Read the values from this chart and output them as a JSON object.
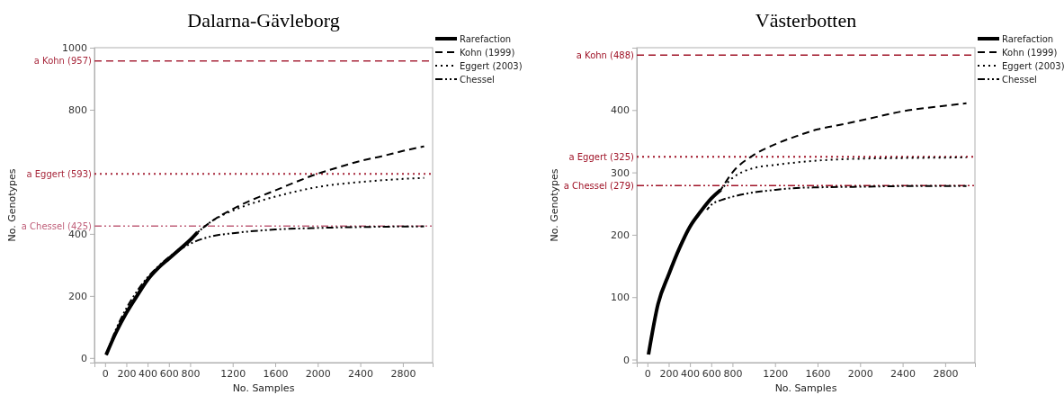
{
  "chart_data": [
    {
      "type": "line",
      "title": "Dalarna-Gävleborg",
      "xlabel": "No. Samples",
      "ylabel": "No. Genotypes",
      "xlim": [
        -100,
        3080
      ],
      "ylim": [
        -15,
        1000
      ],
      "xticks": [
        0,
        200,
        400,
        600,
        800,
        1200,
        1600,
        2000,
        2400,
        2800
      ],
      "yticks": [
        0,
        200,
        400,
        800,
        1000
      ],
      "legend": "top right",
      "grid": false,
      "series": [
        {
          "name": "Rarefaction",
          "color": "#000000",
          "line_style": "solid",
          "x": [
            10,
            100,
            200,
            300,
            400,
            500,
            600,
            700,
            800,
            870
          ],
          "values": [
            10,
            80,
            145,
            200,
            252,
            290,
            320,
            350,
            380,
            405
          ]
        },
        {
          "name": "Kohn (1999)",
          "color": "#000000",
          "line_style": "dashed",
          "x": [
            870,
            1000,
            1200,
            1400,
            1600,
            1800,
            2000,
            2200,
            2400,
            2600,
            2800,
            3000
          ],
          "values": [
            405,
            440,
            480,
            512,
            540,
            568,
            594,
            615,
            635,
            650,
            667,
            682
          ]
        },
        {
          "name": "Eggert (2003)",
          "color": "#000000",
          "line_style": "dotted",
          "x": [
            870,
            1000,
            1200,
            1400,
            1600,
            1800,
            2000,
            2400,
            2800,
            3000
          ],
          "values": [
            405,
            440,
            475,
            500,
            520,
            537,
            551,
            567,
            577,
            580
          ]
        },
        {
          "name": "Chessel",
          "color": "#000000",
          "line_style": "dashdot",
          "x": [
            10,
            100,
            200,
            300,
            400,
            500,
            600,
            700,
            800,
            1000,
            1200,
            1400,
            1600,
            2000,
            2400,
            3000
          ],
          "values": [
            10,
            90,
            160,
            215,
            260,
            295,
            325,
            348,
            368,
            392,
            402,
            409,
            414,
            419,
            422,
            424
          ]
        }
      ],
      "ref_lines": [
        {
          "axis": "y",
          "value": 957,
          "label": "a Kohn (957)",
          "color": "#a8283c",
          "line_style": "dashed"
        },
        {
          "axis": "y",
          "value": 593,
          "label": "a Eggert (593)",
          "color": "#a8283c",
          "line_style": "dotted"
        },
        {
          "axis": "y",
          "value": 425,
          "label": "a Chessel (425)",
          "color": "#c0607a",
          "line_style": "dashdot"
        }
      ]
    },
    {
      "type": "line",
      "title": "Västerbotten",
      "xlabel": "No. Samples",
      "ylabel": "No. Genotypes",
      "xlim": [
        -100,
        3080
      ],
      "ylim": [
        -5,
        500
      ],
      "xticks": [
        0,
        200,
        400,
        600,
        800,
        1200,
        1600,
        2000,
        2400,
        2800
      ],
      "yticks": [
        0,
        100,
        200,
        300,
        400
      ],
      "legend": "top right",
      "grid": false,
      "series": [
        {
          "name": "Rarefaction",
          "color": "#000000",
          "line_style": "solid",
          "x": [
            10,
            100,
            200,
            300,
            400,
            500,
            600,
            690
          ],
          "values": [
            8,
            89,
            136,
            178,
            213,
            237,
            258,
            272
          ]
        },
        {
          "name": "Kohn (1999)",
          "color": "#000000",
          "line_style": "dashed",
          "x": [
            690,
            800,
            1000,
            1200,
            1400,
            1600,
            1800,
            2000,
            2400,
            2800,
            3000
          ],
          "values": [
            272,
            300,
            328,
            345,
            358,
            369,
            376,
            383,
            398,
            407,
            411
          ]
        },
        {
          "name": "Eggert (2003)",
          "color": "#000000",
          "line_style": "dotted",
          "x": [
            690,
            800,
            1000,
            1200,
            1400,
            1600,
            2000,
            2400,
            3000
          ],
          "values": [
            272,
            291,
            307,
            312,
            316,
            319,
            322,
            323,
            324
          ]
        },
        {
          "name": "Chessel",
          "color": "#000000",
          "line_style": "dashdot",
          "x": [
            560,
            600,
            700,
            800,
            1000,
            1200,
            1400,
            1600,
            2000,
            2400,
            3000
          ],
          "values": [
            240,
            248,
            256,
            261,
            268,
            272,
            275,
            276,
            277,
            278,
            278
          ]
        }
      ],
      "ref_lines": [
        {
          "axis": "y",
          "value": 488,
          "label": "a Kohn (488)",
          "color": "#a01428",
          "line_style": "dashed"
        },
        {
          "axis": "y",
          "value": 325,
          "label": "a Eggert (325)",
          "color": "#a01428",
          "line_style": "dotted"
        },
        {
          "axis": "y",
          "value": 279,
          "label": "a Chessel (279)",
          "color": "#a01428",
          "line_style": "dashdot"
        }
      ]
    }
  ]
}
